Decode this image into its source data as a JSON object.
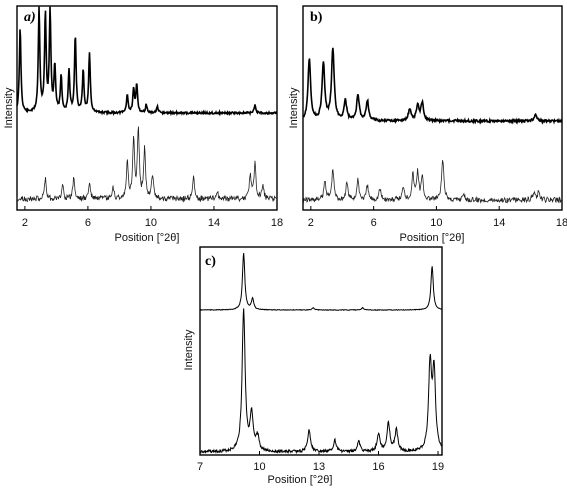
{
  "chart_data": [
    {
      "type": "line",
      "panel_label": "a)",
      "xlabel": "Position [°2θ]",
      "ylabel": "Intensity",
      "xlim": [
        1.5,
        18
      ],
      "xticks": [
        "2",
        "6",
        "10",
        "14",
        "18"
      ],
      "series": [
        {
          "position": "top",
          "line_weight": "thick",
          "peaks": [
            [
              1.7,
              0.82
            ],
            [
              2.9,
              1.0
            ],
            [
              3.3,
              0.95
            ],
            [
              3.6,
              0.97
            ],
            [
              3.9,
              0.45
            ],
            [
              4.3,
              0.35
            ],
            [
              4.8,
              0.4
            ],
            [
              5.2,
              0.75
            ],
            [
              5.7,
              0.4
            ],
            [
              6.1,
              0.58
            ],
            [
              8.5,
              0.18
            ],
            [
              8.9,
              0.22
            ],
            [
              9.1,
              0.28
            ],
            [
              9.7,
              0.08
            ],
            [
              10.4,
              0.06
            ],
            [
              16.6,
              0.08
            ]
          ]
        },
        {
          "position": "bottom",
          "line_weight": "thin",
          "peaks": [
            [
              3.3,
              0.3
            ],
            [
              4.4,
              0.2
            ],
            [
              5.1,
              0.3
            ],
            [
              6.1,
              0.22
            ],
            [
              7.6,
              0.15
            ],
            [
              8.5,
              0.5
            ],
            [
              8.9,
              0.85
            ],
            [
              9.2,
              1.0
            ],
            [
              9.6,
              0.7
            ],
            [
              10.1,
              0.35
            ],
            [
              12.7,
              0.3
            ],
            [
              14.2,
              0.12
            ],
            [
              16.3,
              0.35
            ],
            [
              16.6,
              0.5
            ],
            [
              17.1,
              0.2
            ]
          ]
        }
      ]
    },
    {
      "type": "line",
      "panel_label": "b)",
      "xlabel": "Position [°2θ]",
      "ylabel": "Intensity",
      "xlim": [
        1.5,
        18
      ],
      "xticks": [
        "2",
        "6",
        "10",
        "14",
        "18"
      ],
      "series": [
        {
          "position": "top",
          "line_weight": "thick",
          "peaks": [
            [
              1.9,
              0.62
            ],
            [
              2.8,
              0.57
            ],
            [
              3.4,
              0.72
            ],
            [
              4.2,
              0.2
            ],
            [
              5.0,
              0.25
            ],
            [
              5.6,
              0.2
            ],
            [
              8.3,
              0.12
            ],
            [
              8.8,
              0.15
            ],
            [
              9.1,
              0.18
            ],
            [
              16.3,
              0.06
            ]
          ]
        },
        {
          "position": "bottom",
          "line_weight": "thin",
          "peaks": [
            [
              2.9,
              0.35
            ],
            [
              3.4,
              0.55
            ],
            [
              4.3,
              0.3
            ],
            [
              5.0,
              0.35
            ],
            [
              5.6,
              0.25
            ],
            [
              6.4,
              0.2
            ],
            [
              7.9,
              0.25
            ],
            [
              8.5,
              0.45
            ],
            [
              8.8,
              0.5
            ],
            [
              9.1,
              0.4
            ],
            [
              10.4,
              0.75
            ],
            [
              11.7,
              0.12
            ],
            [
              16.2,
              0.15
            ],
            [
              16.5,
              0.12
            ]
          ]
        }
      ]
    },
    {
      "type": "line",
      "panel_label": "c)",
      "xlabel": "Position [°2θ]",
      "ylabel": "Intensity",
      "xlim": [
        7,
        19.2
      ],
      "xticks": [
        "7",
        "10",
        "13",
        "16",
        "19"
      ],
      "series": [
        {
          "position": "top",
          "line_weight": "thin",
          "peaks": [
            [
              9.2,
              0.52
            ],
            [
              9.65,
              0.1
            ],
            [
              12.7,
              0.02
            ],
            [
              15.2,
              0.02
            ],
            [
              18.7,
              0.4
            ]
          ]
        },
        {
          "position": "bottom",
          "line_weight": "thin",
          "peaks": [
            [
              9.2,
              1.0
            ],
            [
              9.6,
              0.25
            ],
            [
              9.9,
              0.1
            ],
            [
              12.5,
              0.15
            ],
            [
              13.8,
              0.08
            ],
            [
              15.0,
              0.07
            ],
            [
              16.0,
              0.12
            ],
            [
              16.5,
              0.2
            ],
            [
              16.9,
              0.15
            ],
            [
              18.6,
              0.6
            ],
            [
              18.8,
              0.55
            ]
          ]
        }
      ]
    }
  ]
}
